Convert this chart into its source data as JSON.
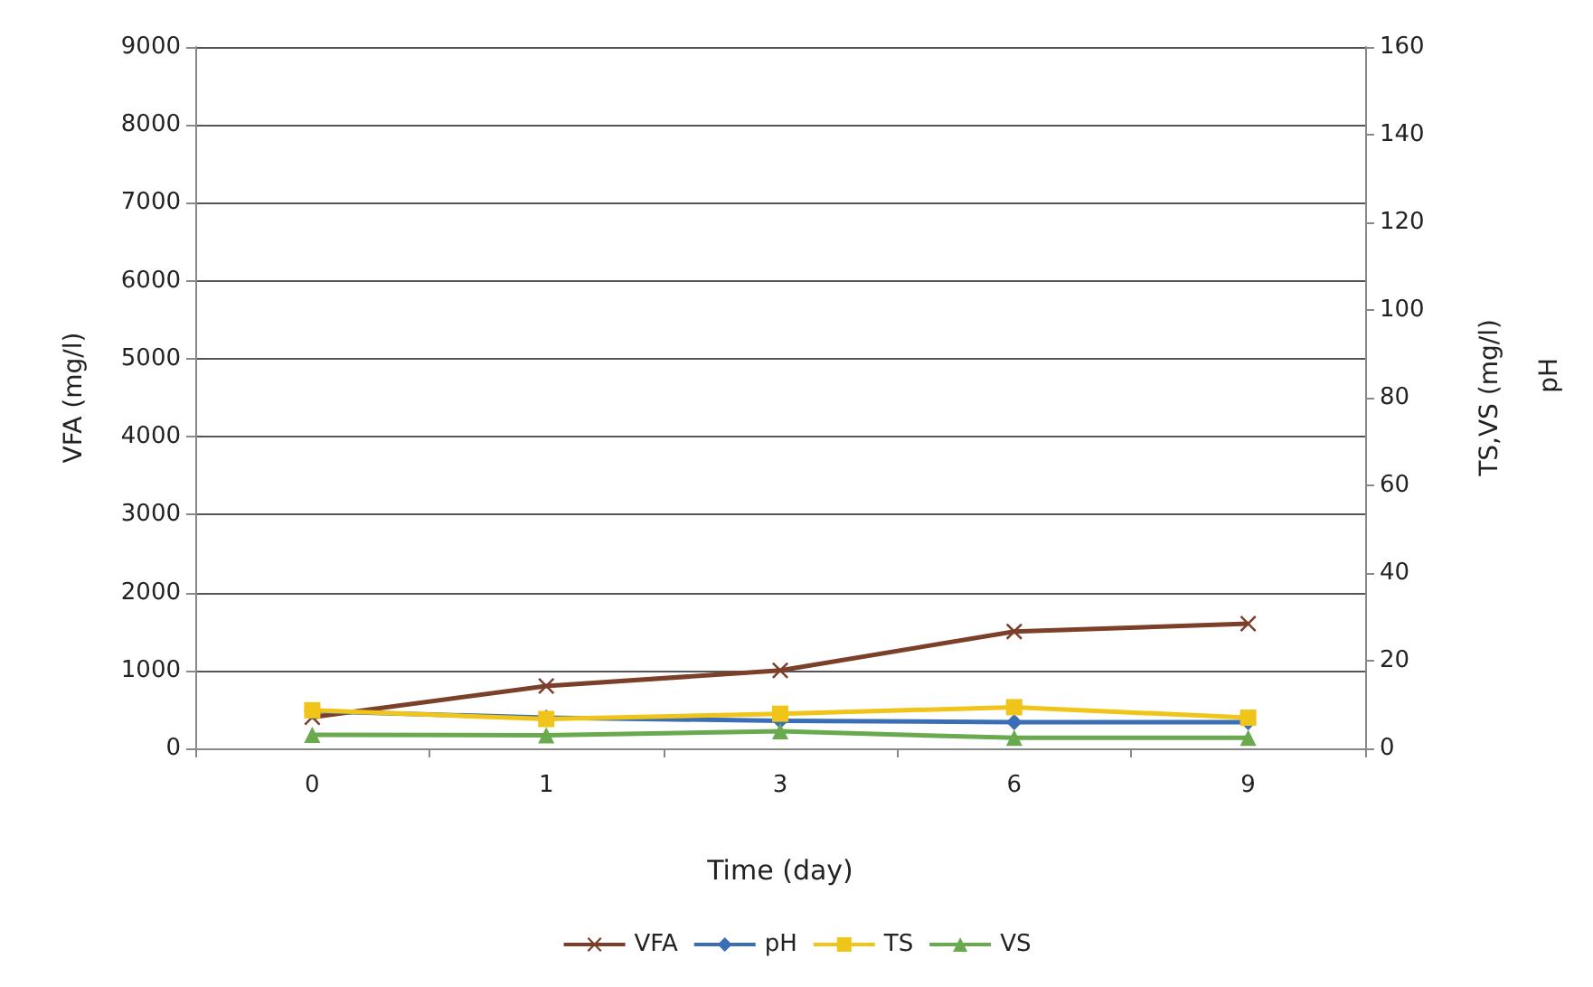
{
  "chart_data": {
    "type": "line",
    "xlabel": "Time (day)",
    "ylabel": "VFA (mg/l)",
    "y2label": "TS,VS (mg/l)",
    "annotations": [
      "pH"
    ],
    "categories": [
      "0",
      "1",
      "3",
      "6",
      "9"
    ],
    "ylim": [
      0,
      9000
    ],
    "yticks": [
      0,
      1000,
      2000,
      3000,
      4000,
      5000,
      6000,
      7000,
      8000,
      9000
    ],
    "y2lim": [
      0,
      160
    ],
    "y2ticks": [
      0,
      20,
      40,
      60,
      80,
      100,
      120,
      140,
      160
    ],
    "grid": "y",
    "legend": "bottom",
    "line_style": "solid",
    "series": [
      {
        "name": "VFA",
        "color": "#7b3f2a",
        "marker": "cross",
        "values": [
          400,
          800,
          1000,
          1500,
          1600
        ]
      },
      {
        "name": "pH",
        "color": "#3a6fb5",
        "marker": "diamond",
        "axis": "y2",
        "values": [
          8.5,
          7,
          6.3,
          6,
          6
        ]
      },
      {
        "name": "TS",
        "color": "#f0c419",
        "marker": "square",
        "axis": "y2",
        "values": [
          8.7,
          6.7,
          7.9,
          9.4,
          7
        ]
      },
      {
        "name": "VS",
        "color": "#6aaa4f",
        "marker": "triangle",
        "axis": "y2",
        "values": [
          3.1,
          3,
          3.9,
          2.4,
          2.4
        ]
      }
    ]
  }
}
